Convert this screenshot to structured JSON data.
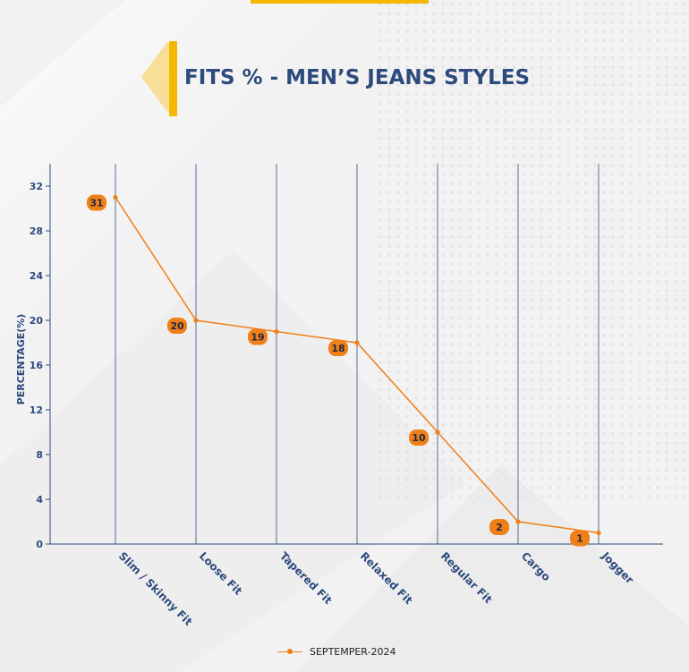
{
  "page": {
    "title": "FITS % - MEN’S JEANS STYLES",
    "colors": {
      "accent": "#f5b800",
      "title": "#2d4b7c",
      "series": "#f07f18",
      "axis": "#2d4b7c",
      "label_bg": "#f07f18"
    }
  },
  "chart_data": {
    "type": "line",
    "title": "FITS % - MEN’S JEANS STYLES",
    "xlabel": "",
    "ylabel": "PERCENTAGE(%)",
    "ylim": [
      0,
      34
    ],
    "yticks": [
      0,
      4,
      8,
      12,
      16,
      20,
      24,
      28,
      32
    ],
    "categories": [
      "Slim / Skinny Fit",
      "Loose Fit",
      "Tapered Fit",
      "Relaxed Fit",
      "Regular Fit",
      "Cargo",
      "Jogger"
    ],
    "series": [
      {
        "name": "SEPTEMPER-2024",
        "values": [
          31,
          20,
          19,
          18,
          10,
          2,
          1
        ]
      }
    ],
    "grid": "vertical",
    "legend": "bottom-center"
  }
}
